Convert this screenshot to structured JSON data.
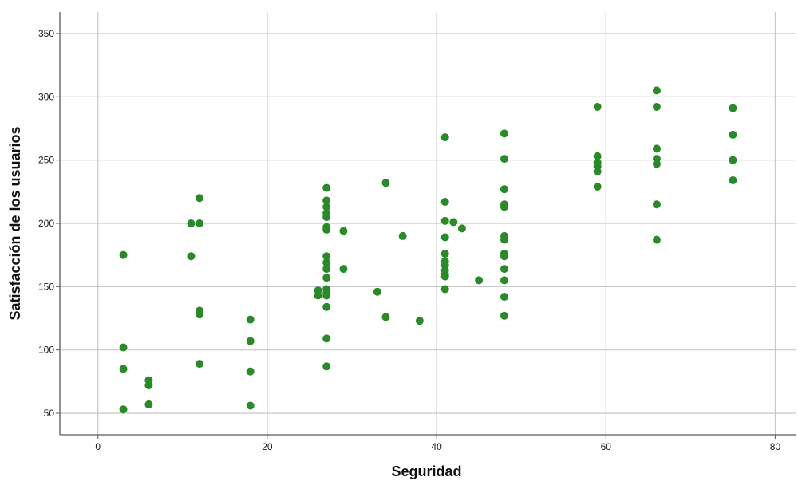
{
  "chart_data": {
    "type": "scatter",
    "title": "",
    "xlabel": "Seguridad",
    "ylabel": "Satisfacción de los usuarios",
    "xlim": [
      -4.5,
      82.5
    ],
    "ylim": [
      33,
      367
    ],
    "x_ticks": [
      0,
      20,
      40,
      60,
      80
    ],
    "y_ticks": [
      50,
      100,
      150,
      200,
      250,
      300,
      350
    ],
    "grid": true,
    "legend": "none",
    "colors": {
      "point": "#2a8a2a",
      "grid": "#c8c8c8",
      "axis": "#5a5a5a"
    },
    "points": [
      {
        "x": 3,
        "y": 175
      },
      {
        "x": 3,
        "y": 102
      },
      {
        "x": 3,
        "y": 85
      },
      {
        "x": 3,
        "y": 53
      },
      {
        "x": 6,
        "y": 76
      },
      {
        "x": 6,
        "y": 72
      },
      {
        "x": 6,
        "y": 57
      },
      {
        "x": 11,
        "y": 200
      },
      {
        "x": 11,
        "y": 174
      },
      {
        "x": 12,
        "y": 220
      },
      {
        "x": 12,
        "y": 200
      },
      {
        "x": 12,
        "y": 131
      },
      {
        "x": 12,
        "y": 128
      },
      {
        "x": 12,
        "y": 89
      },
      {
        "x": 18,
        "y": 124
      },
      {
        "x": 18,
        "y": 107
      },
      {
        "x": 18,
        "y": 83
      },
      {
        "x": 18,
        "y": 56
      },
      {
        "x": 26,
        "y": 147
      },
      {
        "x": 26,
        "y": 143
      },
      {
        "x": 27,
        "y": 228
      },
      {
        "x": 27,
        "y": 218
      },
      {
        "x": 27,
        "y": 213
      },
      {
        "x": 27,
        "y": 208
      },
      {
        "x": 27,
        "y": 205
      },
      {
        "x": 27,
        "y": 197
      },
      {
        "x": 27,
        "y": 195
      },
      {
        "x": 27,
        "y": 174
      },
      {
        "x": 27,
        "y": 169
      },
      {
        "x": 27,
        "y": 164
      },
      {
        "x": 27,
        "y": 157
      },
      {
        "x": 27,
        "y": 148
      },
      {
        "x": 27,
        "y": 145
      },
      {
        "x": 27,
        "y": 143
      },
      {
        "x": 27,
        "y": 134
      },
      {
        "x": 27,
        "y": 109
      },
      {
        "x": 27,
        "y": 87
      },
      {
        "x": 29,
        "y": 194
      },
      {
        "x": 29,
        "y": 164
      },
      {
        "x": 33,
        "y": 146
      },
      {
        "x": 34,
        "y": 232
      },
      {
        "x": 34,
        "y": 126
      },
      {
        "x": 36,
        "y": 190
      },
      {
        "x": 38,
        "y": 123
      },
      {
        "x": 41,
        "y": 268
      },
      {
        "x": 41,
        "y": 217
      },
      {
        "x": 41,
        "y": 202
      },
      {
        "x": 41,
        "y": 189
      },
      {
        "x": 41,
        "y": 176
      },
      {
        "x": 41,
        "y": 170
      },
      {
        "x": 41,
        "y": 167
      },
      {
        "x": 41,
        "y": 163
      },
      {
        "x": 41,
        "y": 160
      },
      {
        "x": 41,
        "y": 158
      },
      {
        "x": 41,
        "y": 148
      },
      {
        "x": 42,
        "y": 201
      },
      {
        "x": 43,
        "y": 196
      },
      {
        "x": 45,
        "y": 155
      },
      {
        "x": 48,
        "y": 271
      },
      {
        "x": 48,
        "y": 251
      },
      {
        "x": 48,
        "y": 227
      },
      {
        "x": 48,
        "y": 215
      },
      {
        "x": 48,
        "y": 213
      },
      {
        "x": 48,
        "y": 190
      },
      {
        "x": 48,
        "y": 187
      },
      {
        "x": 48,
        "y": 176
      },
      {
        "x": 48,
        "y": 174
      },
      {
        "x": 48,
        "y": 164
      },
      {
        "x": 48,
        "y": 155
      },
      {
        "x": 48,
        "y": 142
      },
      {
        "x": 48,
        "y": 127
      },
      {
        "x": 59,
        "y": 292
      },
      {
        "x": 59,
        "y": 253
      },
      {
        "x": 59,
        "y": 248
      },
      {
        "x": 59,
        "y": 245
      },
      {
        "x": 59,
        "y": 241
      },
      {
        "x": 59,
        "y": 229
      },
      {
        "x": 66,
        "y": 305
      },
      {
        "x": 66,
        "y": 292
      },
      {
        "x": 66,
        "y": 259
      },
      {
        "x": 66,
        "y": 251
      },
      {
        "x": 66,
        "y": 247
      },
      {
        "x": 66,
        "y": 215
      },
      {
        "x": 66,
        "y": 187
      },
      {
        "x": 75,
        "y": 291
      },
      {
        "x": 75,
        "y": 270
      },
      {
        "x": 75,
        "y": 250
      },
      {
        "x": 75,
        "y": 234
      }
    ]
  }
}
